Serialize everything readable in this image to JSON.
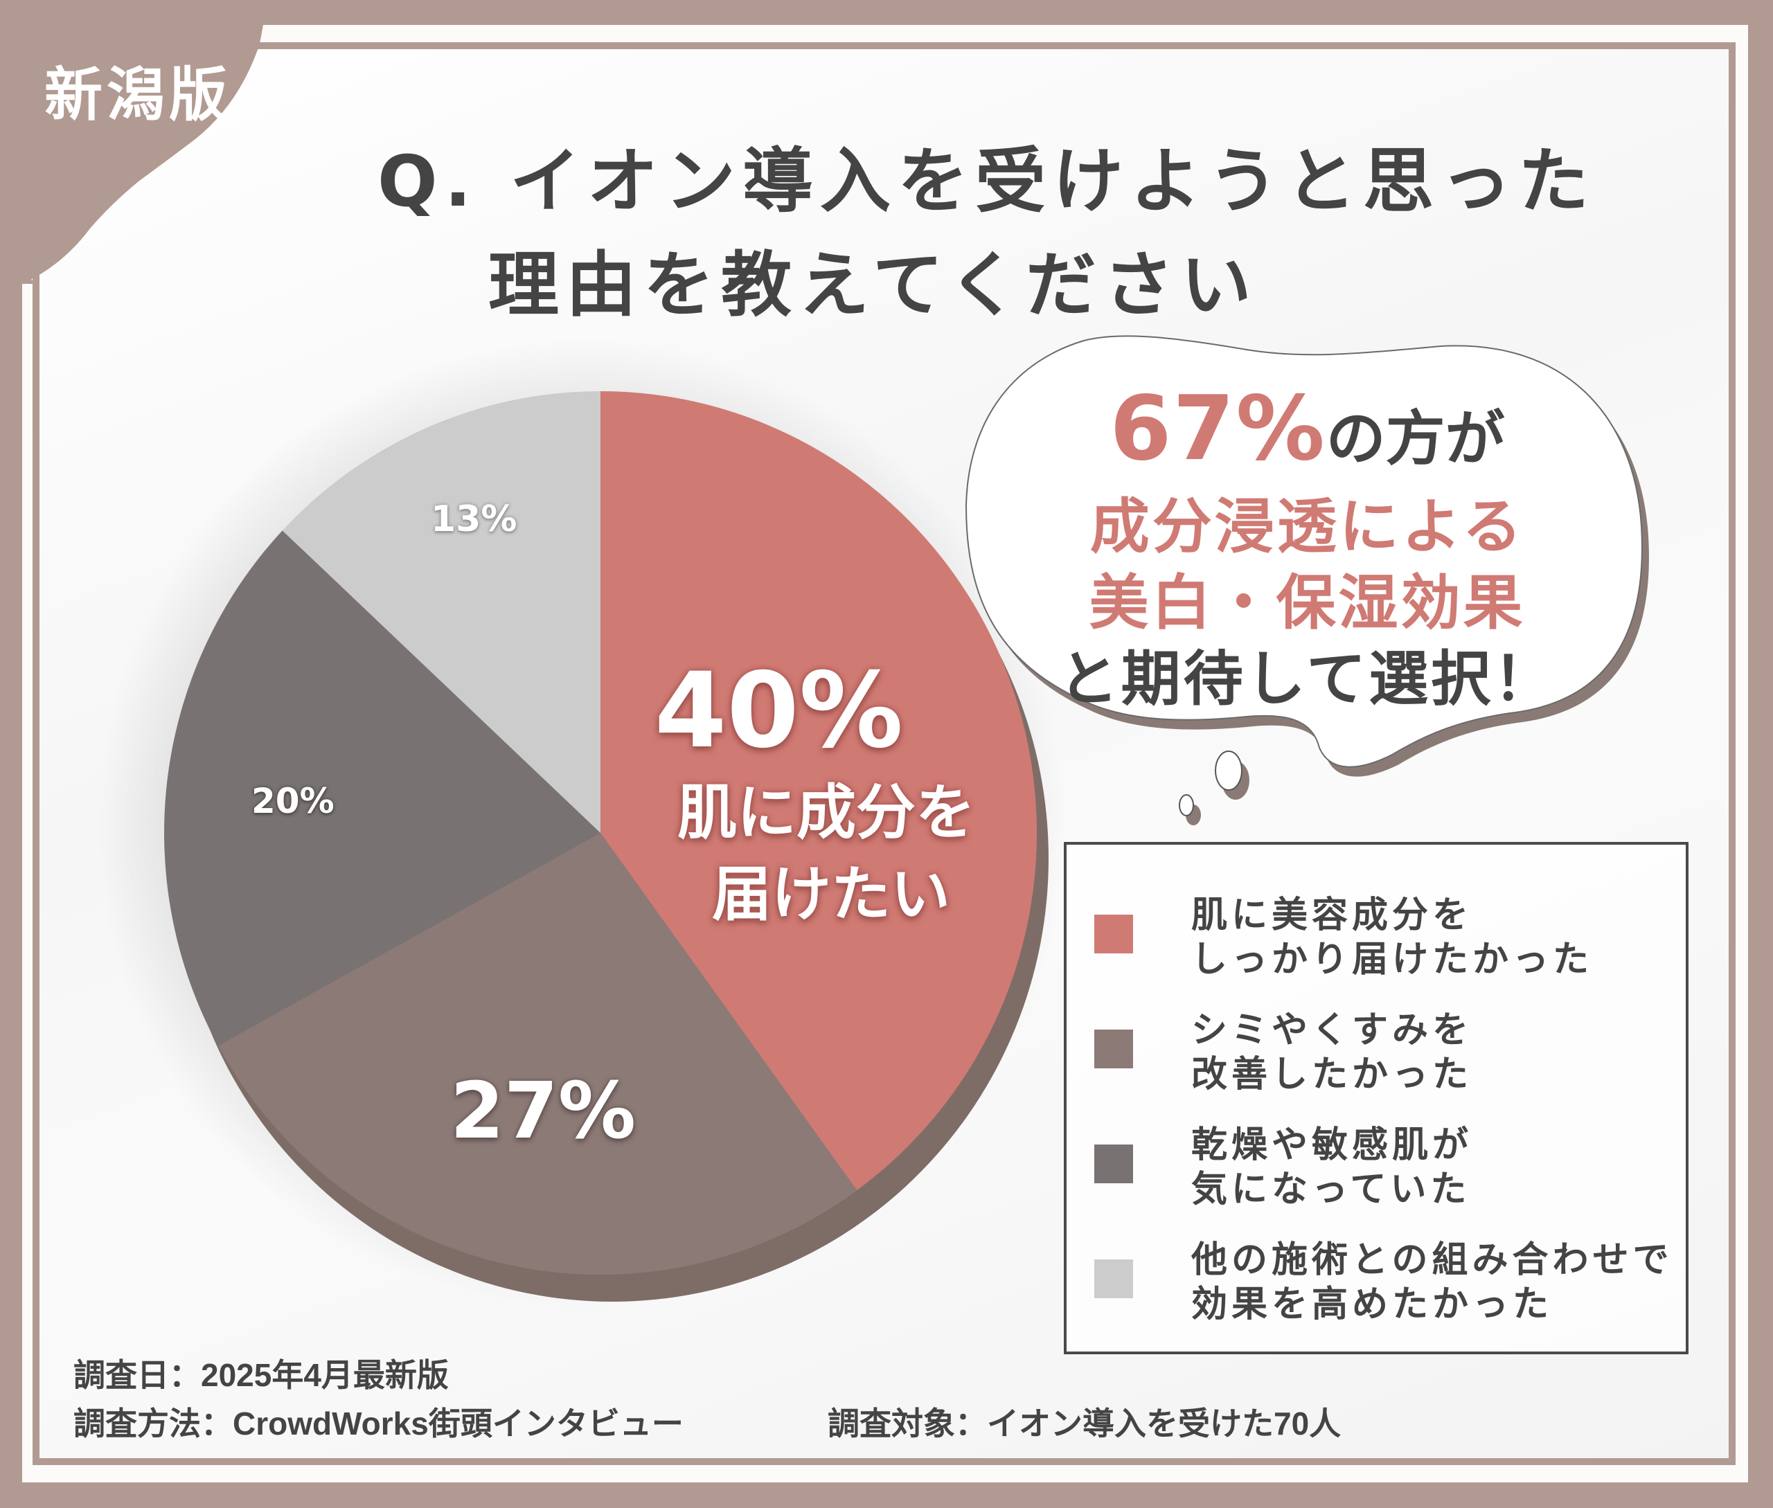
{
  "badge": "新潟版",
  "title": {
    "line1": "Q. イオン導入を受けようと思った",
    "line2": "理由を教えてください"
  },
  "colors": {
    "frame": "#b19a92",
    "accent": "#d07a74",
    "text": "#444444",
    "pie_depth": "#7e6d66"
  },
  "chart_data": {
    "type": "pie",
    "title": "Q. イオン導入を受けようと思った理由を教えてください",
    "start_angle": "12 o'clock, clockwise",
    "categories": [
      "肌に美容成分をしっかり届けたかった",
      "シミやくすみを改善したかった",
      "乾燥や敏感肌が気になっていた",
      "他の施術との組み合わせで効果を高めたかった"
    ],
    "values": [
      40,
      27,
      20,
      13
    ],
    "unit": "%",
    "colors": [
      "#d07a74",
      "#8c7a77",
      "#787372",
      "#cccccc"
    ],
    "data_labels": [
      "40%",
      "27%",
      "20%",
      "13%"
    ],
    "annotation": "肌に成分を届けたい",
    "legend_position": "right-bottom",
    "style": "3D tilted pie"
  },
  "pie_labels": {
    "p40": "40%",
    "p40_desc_1": "肌に成分を",
    "p40_desc_2": "届けたい",
    "p27": "27%",
    "p20": "20%",
    "p13": "13%"
  },
  "bubble": {
    "highlight": "67%",
    "line1_rest": "の方が",
    "line2": "成分浸透による",
    "line3": "美白・保湿効果",
    "line4": "と期待して選択！"
  },
  "legend": {
    "items": [
      {
        "line1": "肌に美容成分を",
        "line2": "しっかり届けたかった",
        "color": "#d07a74"
      },
      {
        "line1": "シミやくすみを",
        "line2": "改善したかった",
        "color": "#8c7a77"
      },
      {
        "line1": "乾燥や敏感肌が",
        "line2": "気になっていた",
        "color": "#787372"
      },
      {
        "line1": "他の施術との組み合わせで",
        "line2": "効果を高めたかった",
        "color": "#cccccc"
      }
    ]
  },
  "footer": {
    "date": "調査日：2025年4月最新版",
    "method": "調査方法：CrowdWorks街頭インタビュー",
    "target": "調査対象：イオン導入を受けた70人"
  }
}
